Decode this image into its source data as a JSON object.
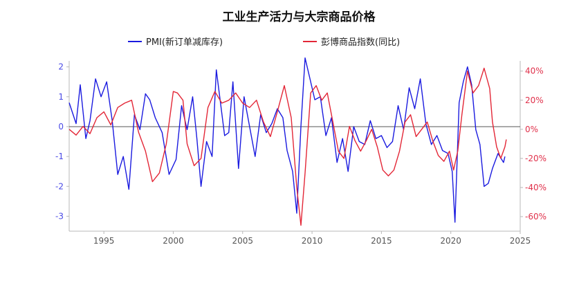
{
  "chart_data": {
    "type": "line",
    "title": "工业生产活力与大宗商品价格",
    "x_range": [
      1992.5,
      2025.0
    ],
    "x_ticks": [
      "1995",
      "2000",
      "2005",
      "2010",
      "2015",
      "2020",
      "2025"
    ],
    "y_left": {
      "ylim": [
        -3.5,
        2.2
      ],
      "ticks": [
        "2",
        "1",
        "0",
        "-1",
        "-2",
        "-3"
      ],
      "color": "#4a4ae6"
    },
    "y_right": {
      "ylim": [
        -0.7,
        0.47
      ],
      "ticks": [
        "40%",
        "20%",
        "0%",
        "-20%",
        "-40%",
        "-60%"
      ],
      "color": "#e0304a"
    },
    "zero_line": true,
    "grid": false,
    "legend_position": "top",
    "series": [
      {
        "name": "PMI(新订单减库存)",
        "axis": "left",
        "color": "#1a1adf",
        "x": [
          1992.5,
          1993.0,
          1993.3,
          1993.7,
          1994.0,
          1994.4,
          1994.8,
          1995.2,
          1995.6,
          1996.0,
          1996.4,
          1996.8,
          1997.2,
          1997.6,
          1998.0,
          1998.3,
          1998.7,
          1999.2,
          1999.7,
          2000.2,
          2000.6,
          2001.0,
          2001.4,
          2001.7,
          2002.0,
          2002.4,
          2002.8,
          2003.1,
          2003.4,
          2003.7,
          2004.0,
          2004.3,
          2004.7,
          2005.1,
          2005.5,
          2005.9,
          2006.3,
          2006.7,
          2007.1,
          2007.5,
          2007.9,
          2008.2,
          2008.6,
          2008.9,
          2009.2,
          2009.5,
          2009.8,
          2010.2,
          2010.6,
          2011.0,
          2011.4,
          2011.8,
          2012.2,
          2012.6,
          2013.0,
          2013.4,
          2013.8,
          2014.2,
          2014.6,
          2015.0,
          2015.4,
          2015.8,
          2016.2,
          2016.6,
          2017.0,
          2017.4,
          2017.8,
          2018.2,
          2018.6,
          2019.0,
          2019.4,
          2019.8,
          2020.1,
          2020.3,
          2020.6,
          2020.9,
          2021.2,
          2021.5,
          2021.8,
          2022.1,
          2022.4,
          2022.7,
          2023.0,
          2023.4,
          2023.8,
          2023.9
        ],
        "y": [
          0.8,
          0.1,
          1.4,
          -0.4,
          0.2,
          1.6,
          1.0,
          1.5,
          0.2,
          -1.6,
          -1.0,
          -2.1,
          0.4,
          -0.1,
          1.1,
          0.9,
          0.3,
          -0.2,
          -1.6,
          -1.1,
          0.7,
          -0.1,
          1.0,
          -0.4,
          -2.0,
          -0.5,
          -1.0,
          1.9,
          0.8,
          -0.3,
          -0.2,
          1.5,
          -1.4,
          1.0,
          0.0,
          -1.0,
          0.4,
          -0.2,
          0.1,
          0.6,
          0.3,
          -0.8,
          -1.5,
          -2.9,
          0.0,
          2.3,
          1.7,
          0.9,
          1.0,
          -0.3,
          0.3,
          -1.2,
          -0.4,
          -1.5,
          0.0,
          -0.5,
          -0.6,
          0.2,
          -0.4,
          -0.3,
          -0.7,
          -0.5,
          0.7,
          -0.1,
          1.3,
          0.6,
          1.6,
          0.1,
          -0.6,
          -0.3,
          -0.8,
          -0.9,
          -1.5,
          -3.2,
          0.8,
          1.5,
          2.0,
          1.4,
          -0.1,
          -0.6,
          -2.0,
          -1.9,
          -1.4,
          -0.9,
          -1.2,
          -1.0
        ]
      },
      {
        "name": "彭博商品指数(同比)",
        "axis": "right",
        "color": "#e32636",
        "x": [
          1992.5,
          1993.0,
          1993.5,
          1994.0,
          1994.5,
          1995.0,
          1995.5,
          1996.0,
          1996.5,
          1997.0,
          1997.5,
          1998.0,
          1998.5,
          1999.0,
          1999.5,
          2000.0,
          2000.3,
          2000.7,
          2001.0,
          2001.5,
          2002.0,
          2002.5,
          2003.0,
          2003.5,
          2004.0,
          2004.5,
          2005.0,
          2005.5,
          2006.0,
          2006.5,
          2007.0,
          2007.5,
          2008.0,
          2008.5,
          2008.9,
          2009.2,
          2009.5,
          2009.9,
          2010.3,
          2010.7,
          2011.1,
          2011.5,
          2011.9,
          2012.3,
          2012.7,
          2013.1,
          2013.5,
          2013.9,
          2014.3,
          2014.7,
          2015.1,
          2015.5,
          2015.9,
          2016.3,
          2016.7,
          2017.1,
          2017.5,
          2017.9,
          2018.3,
          2018.7,
          2019.1,
          2019.5,
          2019.9,
          2020.2,
          2020.5,
          2020.8,
          2021.2,
          2021.6,
          2022.0,
          2022.4,
          2022.8,
          2023.0,
          2023.3,
          2023.6,
          2023.9,
          2024.0
        ],
        "y": [
          0.0,
          -0.04,
          0.02,
          -0.03,
          0.08,
          0.12,
          0.03,
          0.15,
          0.18,
          0.2,
          -0.02,
          -0.15,
          -0.36,
          -0.3,
          -0.1,
          0.26,
          0.25,
          0.2,
          -0.1,
          -0.25,
          -0.2,
          0.15,
          0.26,
          0.18,
          0.2,
          0.25,
          0.18,
          0.15,
          0.2,
          0.05,
          -0.05,
          0.12,
          0.3,
          0.08,
          -0.4,
          -0.66,
          -0.3,
          0.25,
          0.3,
          0.2,
          0.25,
          0.05,
          -0.15,
          -0.2,
          0.02,
          -0.08,
          -0.15,
          -0.08,
          0.0,
          -0.12,
          -0.28,
          -0.32,
          -0.28,
          -0.15,
          0.05,
          0.1,
          -0.05,
          0.0,
          0.05,
          -0.08,
          -0.18,
          -0.22,
          -0.15,
          -0.28,
          -0.15,
          0.1,
          0.4,
          0.25,
          0.3,
          0.42,
          0.28,
          0.05,
          -0.12,
          -0.2,
          -0.12,
          -0.07
        ]
      }
    ]
  }
}
